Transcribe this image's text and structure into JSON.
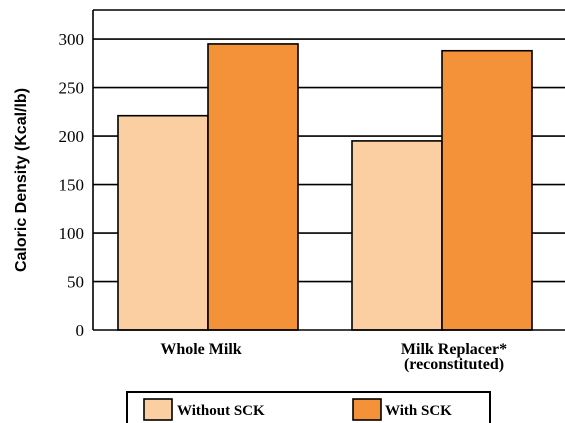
{
  "chart_data": {
    "type": "bar",
    "title": "",
    "xlabel": "",
    "ylabel": "Caloric Density (Kcal/lb)",
    "ylim": [
      0,
      330
    ],
    "yticks": [
      0,
      50,
      100,
      150,
      200,
      250,
      300
    ],
    "grid": true,
    "legend_position": "bottom",
    "categories": [
      [
        "Whole Milk"
      ],
      [
        "Milk Replacer*",
        "(reconstituted)"
      ]
    ],
    "series": [
      {
        "name": "Without SCK",
        "values": [
          221,
          195
        ],
        "color": "#fbcfa2"
      },
      {
        "name": "With SCK",
        "values": [
          295,
          288
        ],
        "color": "#f4923a"
      }
    ]
  }
}
